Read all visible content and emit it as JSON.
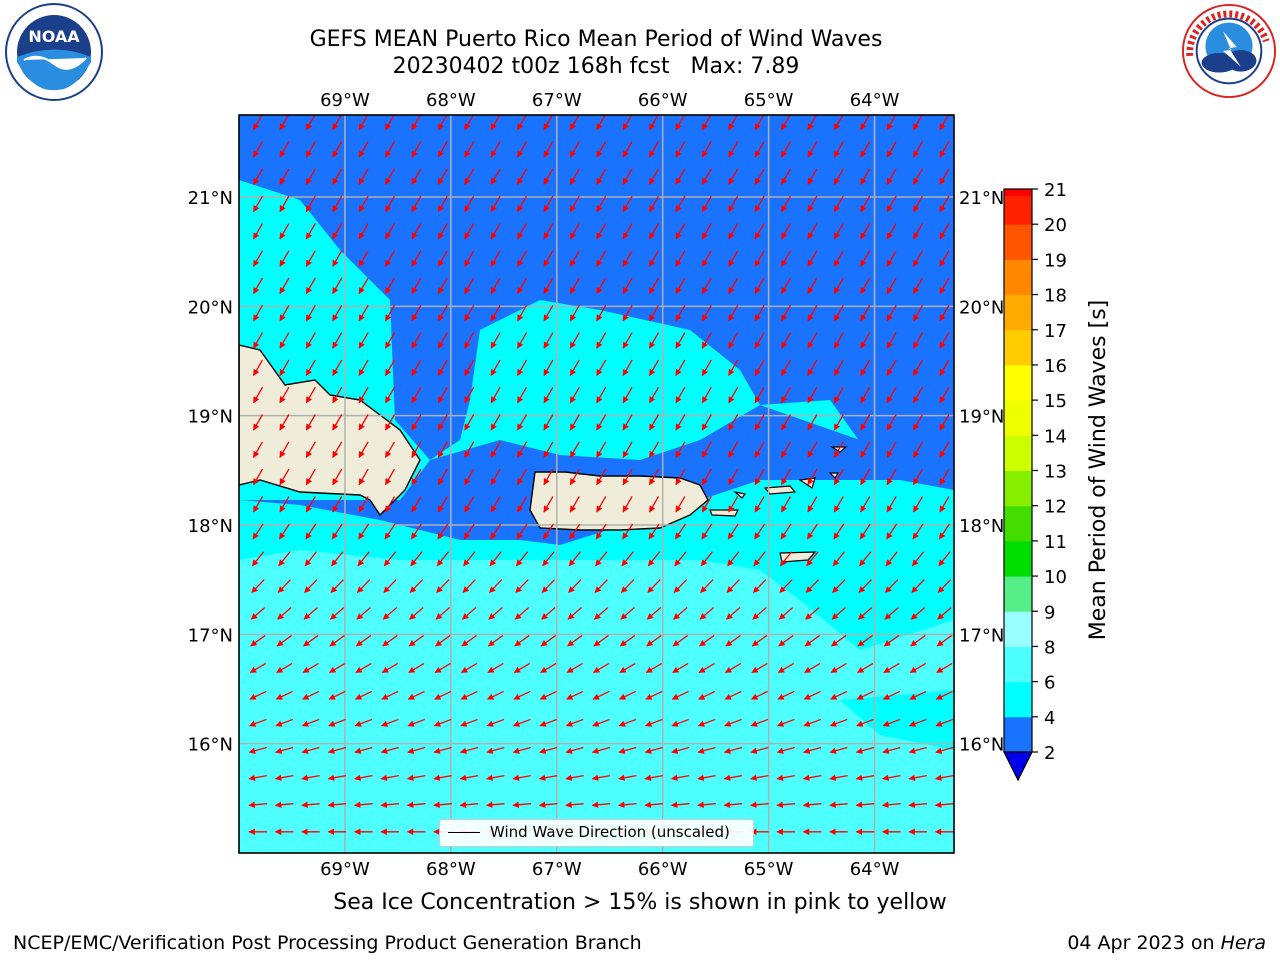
{
  "header": {
    "title_line1": "GEFS MEAN Puerto Rico Mean Period of Wind Waves",
    "title_line2": "20230402 t00z 168h fcst   Max: 7.89"
  },
  "logos": {
    "left": {
      "name": "noaa-logo",
      "text": "NOAA",
      "ring_text": "NATIONAL OCEANIC AND ATMOSPHERIC ADMINISTRATION · U.S. DEPARTMENT OF COMMERCE"
    },
    "right": {
      "name": "nws-logo",
      "ring_text": "NATIONAL WEATHER SERVICE"
    }
  },
  "map": {
    "lon_range": [
      -70.0,
      -63.25
    ],
    "lat_range": [
      15.0,
      21.75
    ],
    "lon_ticks": [
      {
        "value": -69,
        "label": "69°W"
      },
      {
        "value": -68,
        "label": "68°W"
      },
      {
        "value": -67,
        "label": "67°W"
      },
      {
        "value": -66,
        "label": "66°W"
      },
      {
        "value": -65,
        "label": "65°W"
      },
      {
        "value": -64,
        "label": "64°W"
      }
    ],
    "lat_ticks": [
      {
        "value": 21,
        "label": "21°N"
      },
      {
        "value": 20,
        "label": "20°N"
      },
      {
        "value": 19,
        "label": "19°N"
      },
      {
        "value": 18,
        "label": "18°N"
      },
      {
        "value": 17,
        "label": "17°N"
      },
      {
        "value": 16,
        "label": "16°N"
      }
    ],
    "grid": true,
    "land_color": "#efedd9",
    "arrow_color": "#ff0000",
    "legend_label": "Wind Wave Direction (unscaled)"
  },
  "colorbar": {
    "title": "Mean Period of Wind Waves [s]",
    "levels": [
      2,
      4,
      6,
      8,
      9,
      10,
      11,
      12,
      13,
      14,
      15,
      16,
      17,
      18,
      19,
      20,
      21
    ],
    "colors": [
      "#1a73ff",
      "#00ffff",
      "#4dffff",
      "#99ffff",
      "#55ee88",
      "#00dd00",
      "#44dd00",
      "#88ee00",
      "#ccff00",
      "#eeff00",
      "#ffff00",
      "#ffcc00",
      "#ffaa00",
      "#ff8800",
      "#ff5500",
      "#ff2200"
    ],
    "under_color": "#0000ee",
    "top_color": "#ff0000",
    "tick_labels": [
      "2",
      "4",
      "6",
      "8",
      "9",
      "10",
      "11",
      "12",
      "13",
      "14",
      "15",
      "16",
      "17",
      "18",
      "19",
      "20",
      "21"
    ]
  },
  "ice_note": "Sea Ice Concentration > 15% is shown in pink to yellow",
  "footer": {
    "left": "NCEP/EMC/Verification Post Processing Product Generation Branch",
    "right_date": "04 Apr 2023 on",
    "right_host": "Hera"
  }
}
